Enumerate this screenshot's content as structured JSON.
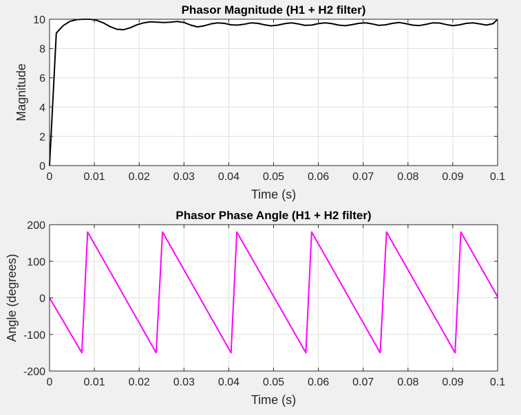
{
  "figure": {
    "background": "#f0f0f0"
  },
  "chart_data": [
    {
      "type": "line",
      "title": "Phasor Magnitude (H1 + H2 filter)",
      "xlabel": "Time (s)",
      "ylabel": "Magnitude",
      "xlim": [
        0,
        0.1
      ],
      "ylim": [
        0,
        10
      ],
      "xticks": [
        "0",
        "0.01",
        "0.02",
        "0.03",
        "0.04",
        "0.05",
        "0.06",
        "0.07",
        "0.08",
        "0.09",
        "0.1"
      ],
      "yticks": [
        "0",
        "2",
        "4",
        "6",
        "8",
        "10"
      ],
      "xtick_values": [
        0,
        0.01,
        0.02,
        0.03,
        0.04,
        0.05,
        0.06,
        0.07,
        0.08,
        0.09,
        0.1
      ],
      "ytick_values": [
        0,
        2,
        4,
        6,
        8,
        10
      ],
      "grid": true,
      "series": [
        {
          "color": "#000000",
          "x": [
            0,
            0.0015,
            0.003,
            0.0045,
            0.006,
            0.0075,
            0.009,
            0.0105,
            0.012,
            0.0135,
            0.015,
            0.0165,
            0.018,
            0.0195,
            0.021,
            0.0225,
            0.024,
            0.0255,
            0.027,
            0.0285,
            0.03,
            0.0315,
            0.033,
            0.0345,
            0.036,
            0.0375,
            0.039,
            0.0405,
            0.042,
            0.0435,
            0.045,
            0.0465,
            0.048,
            0.0495,
            0.051,
            0.0525,
            0.054,
            0.0555,
            0.057,
            0.0585,
            0.06,
            0.0615,
            0.063,
            0.0645,
            0.066,
            0.0675,
            0.069,
            0.0705,
            0.072,
            0.0735,
            0.075,
            0.0765,
            0.078,
            0.0795,
            0.081,
            0.0825,
            0.084,
            0.0855,
            0.087,
            0.0885,
            0.09,
            0.0915,
            0.093,
            0.0945,
            0.096,
            0.0975,
            0.099,
            0.1
          ],
          "y": [
            0,
            9.05,
            9.55,
            9.85,
            9.97,
            10.0,
            10.0,
            9.93,
            9.75,
            9.5,
            9.32,
            9.28,
            9.42,
            9.62,
            9.75,
            9.82,
            9.8,
            9.78,
            9.8,
            9.85,
            9.78,
            9.6,
            9.48,
            9.55,
            9.68,
            9.75,
            9.72,
            9.62,
            9.6,
            9.66,
            9.75,
            9.72,
            9.62,
            9.55,
            9.6,
            9.7,
            9.75,
            9.68,
            9.58,
            9.6,
            9.7,
            9.75,
            9.7,
            9.6,
            9.56,
            9.63,
            9.72,
            9.75,
            9.68,
            9.58,
            9.62,
            9.72,
            9.78,
            9.7,
            9.6,
            9.57,
            9.65,
            9.75,
            9.74,
            9.64,
            9.56,
            9.62,
            9.72,
            9.75,
            9.68,
            9.6,
            9.7,
            10.0
          ]
        }
      ]
    },
    {
      "type": "line",
      "title": "Phasor Phase Angle (H1 + H2 filter)",
      "xlabel": "Time (s)",
      "ylabel": "Angle (degrees)",
      "xlim": [
        0,
        0.1
      ],
      "ylim": [
        -200,
        200
      ],
      "xticks": [
        "0",
        "0.01",
        "0.02",
        "0.03",
        "0.04",
        "0.05",
        "0.06",
        "0.07",
        "0.08",
        "0.09",
        "0.1"
      ],
      "yticks": [
        "-200",
        "-100",
        "0",
        "100",
        "200"
      ],
      "xtick_values": [
        0,
        0.01,
        0.02,
        0.03,
        0.04,
        0.05,
        0.06,
        0.07,
        0.08,
        0.09,
        0.1
      ],
      "ytick_values": [
        -200,
        -100,
        0,
        100,
        200
      ],
      "grid": true,
      "series": [
        {
          "color": "#ff00ff",
          "x": [
            0,
            0.0072,
            0.0085,
            0.0238,
            0.0252,
            0.0405,
            0.0418,
            0.0572,
            0.0585,
            0.0738,
            0.0752,
            0.0905,
            0.0918,
            0.1
          ],
          "y": [
            0,
            -150,
            180,
            -150,
            180,
            -150,
            180,
            -150,
            180,
            -150,
            180,
            -150,
            180,
            3
          ]
        }
      ]
    }
  ]
}
